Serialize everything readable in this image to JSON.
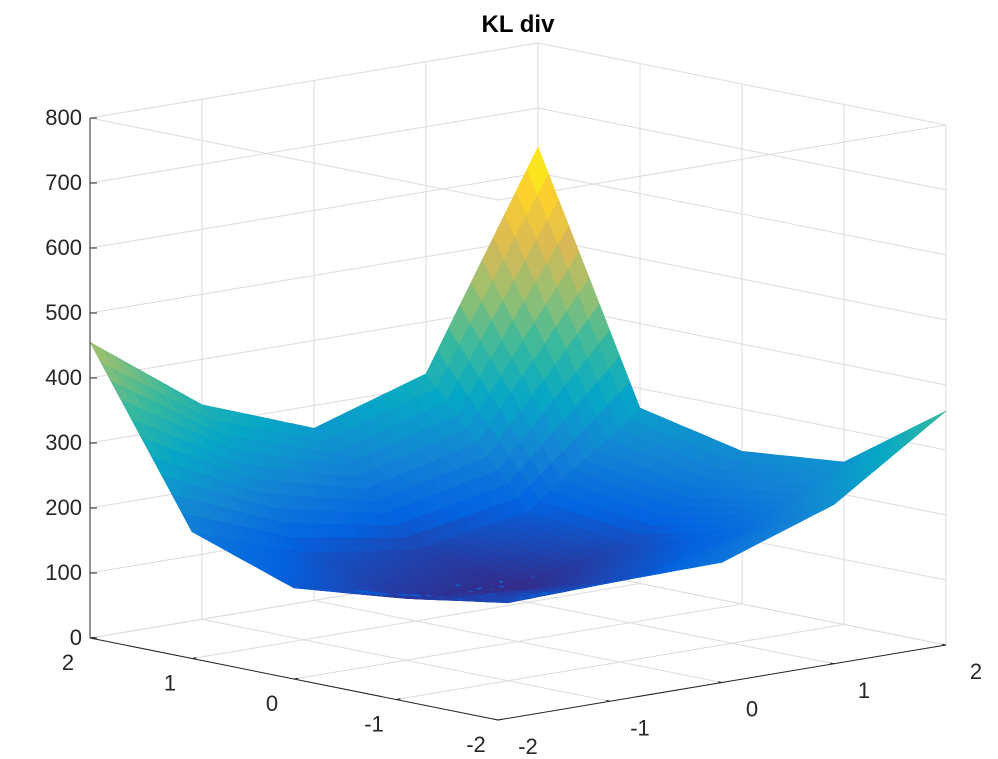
{
  "chart_data": {
    "type": "surface3d",
    "title": "KL div",
    "xlabel": "",
    "ylabel": "",
    "zlabel": "",
    "x_ticks": [
      "-2",
      "-1",
      "0",
      "1",
      "2"
    ],
    "y_ticks": [
      "-2",
      "-1",
      "0",
      "1",
      "2"
    ],
    "z_ticks": [
      "0",
      "100",
      "200",
      "300",
      "400",
      "500",
      "600",
      "700",
      "800"
    ],
    "xlim": [
      -2,
      2
    ],
    "ylim": [
      -2,
      2
    ],
    "zlim": [
      0,
      800
    ],
    "grid": true,
    "colormap": "parula",
    "colormap_stops": [
      "#352a87",
      "#0363e1",
      "#1485d4",
      "#06a7c6",
      "#38b99e",
      "#92bf73",
      "#d9ba56",
      "#fcce2e",
      "#f9fb0e"
    ],
    "surface": {
      "x": [
        -2,
        -1,
        0,
        1,
        2
      ],
      "y": [
        -2,
        -1,
        0,
        1,
        2
      ],
      "z": [
        [
          255,
          190,
          185,
          245,
          360
        ],
        [
          165,
          120,
          125,
          165,
          250
        ],
        [
          140,
          95,
          80,
          120,
          235
        ],
        [
          195,
          135,
          110,
          140,
          270
        ],
        [
          455,
          330,
          265,
          320,
          640
        ]
      ]
    }
  }
}
